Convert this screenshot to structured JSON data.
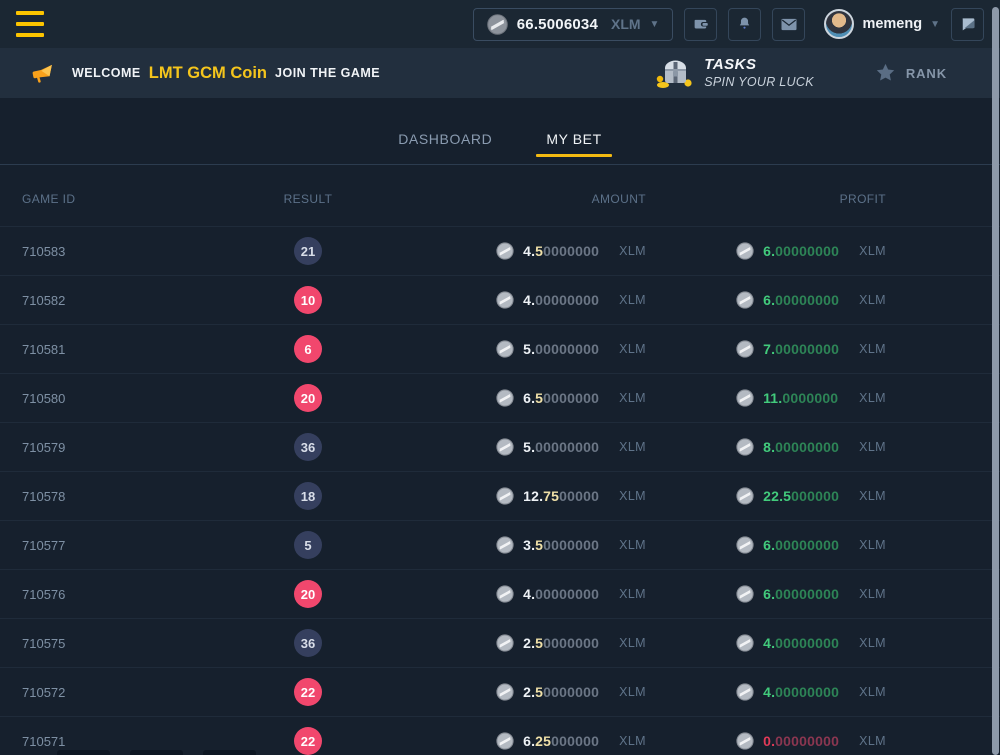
{
  "topbar": {
    "balance": {
      "amount": "66.5006034",
      "currency": "XLM"
    },
    "username": "memeng",
    "icons": [
      "menu",
      "coin",
      "wallet",
      "notifications",
      "mail",
      "avatar",
      "chat"
    ]
  },
  "banner": {
    "welcome_prefix": "WELCOME",
    "coin_name": "LMT GCM Coin",
    "welcome_suffix": "JOIN THE GAME",
    "tasks_title": "TASKS",
    "tasks_subtitle": "SPIN YOUR LUCK",
    "rank_label": "RANK"
  },
  "tabs": [
    {
      "label": "DASHBOARD",
      "active": false
    },
    {
      "label": "MY BET",
      "active": true
    }
  ],
  "table": {
    "headers": [
      "GAME ID",
      "RESULT",
      "AMOUNT",
      "PROFIT"
    ],
    "currency": "XLM",
    "rows": [
      {
        "game_id": "710583",
        "result": "21",
        "result_color": "navy",
        "amount_int": "4.",
        "amount_frac": "5",
        "amount_zeros": "0000000",
        "profit_sig": "6.",
        "profit_zeros": "00000000",
        "outcome": "win"
      },
      {
        "game_id": "710582",
        "result": "10",
        "result_color": "pink",
        "amount_int": "4.",
        "amount_frac": "",
        "amount_zeros": "00000000",
        "profit_sig": "6.",
        "profit_zeros": "00000000",
        "outcome": "win"
      },
      {
        "game_id": "710581",
        "result": "6",
        "result_color": "pink",
        "amount_int": "5.",
        "amount_frac": "",
        "amount_zeros": "00000000",
        "profit_sig": "7.",
        "profit_zeros": "00000000",
        "outcome": "win"
      },
      {
        "game_id": "710580",
        "result": "20",
        "result_color": "pink",
        "amount_int": "6.",
        "amount_frac": "5",
        "amount_zeros": "0000000",
        "profit_sig": "11.",
        "profit_zeros": "0000000",
        "outcome": "win"
      },
      {
        "game_id": "710579",
        "result": "36",
        "result_color": "navy",
        "amount_int": "5.",
        "amount_frac": "",
        "amount_zeros": "00000000",
        "profit_sig": "8.",
        "profit_zeros": "00000000",
        "outcome": "win"
      },
      {
        "game_id": "710578",
        "result": "18",
        "result_color": "navy",
        "amount_int": "12.",
        "amount_frac": "75",
        "amount_zeros": "00000",
        "profit_sig": "22.5",
        "profit_zeros": "000000",
        "outcome": "win"
      },
      {
        "game_id": "710577",
        "result": "5",
        "result_color": "navy",
        "amount_int": "3.",
        "amount_frac": "5",
        "amount_zeros": "0000000",
        "profit_sig": "6.",
        "profit_zeros": "00000000",
        "outcome": "win"
      },
      {
        "game_id": "710576",
        "result": "20",
        "result_color": "pink",
        "amount_int": "4.",
        "amount_frac": "",
        "amount_zeros": "00000000",
        "profit_sig": "6.",
        "profit_zeros": "00000000",
        "outcome": "win"
      },
      {
        "game_id": "710575",
        "result": "36",
        "result_color": "navy",
        "amount_int": "2.",
        "amount_frac": "5",
        "amount_zeros": "0000000",
        "profit_sig": "4.",
        "profit_zeros": "00000000",
        "outcome": "win"
      },
      {
        "game_id": "710572",
        "result": "22",
        "result_color": "pink",
        "amount_int": "2.",
        "amount_frac": "5",
        "amount_zeros": "0000000",
        "profit_sig": "4.",
        "profit_zeros": "00000000",
        "outcome": "win"
      },
      {
        "game_id": "710571",
        "result": "22",
        "result_color": "pink",
        "amount_int": "6.",
        "amount_frac": "25",
        "amount_zeros": "000000",
        "profit_sig": "0.",
        "profit_zeros": "00000000",
        "outcome": "lose"
      }
    ]
  },
  "colors": {
    "accent_yellow": "#f3ba12",
    "coin_yellow": "#f5c51c",
    "badge_pink": "#f1476d",
    "badge_navy": "#353f5e",
    "profit_green": "#42cb7c",
    "loss_red": "#e13a58",
    "topbar_bg": "#1b2733",
    "banner_bg": "#222f3e",
    "page_bg": "#16202d"
  }
}
